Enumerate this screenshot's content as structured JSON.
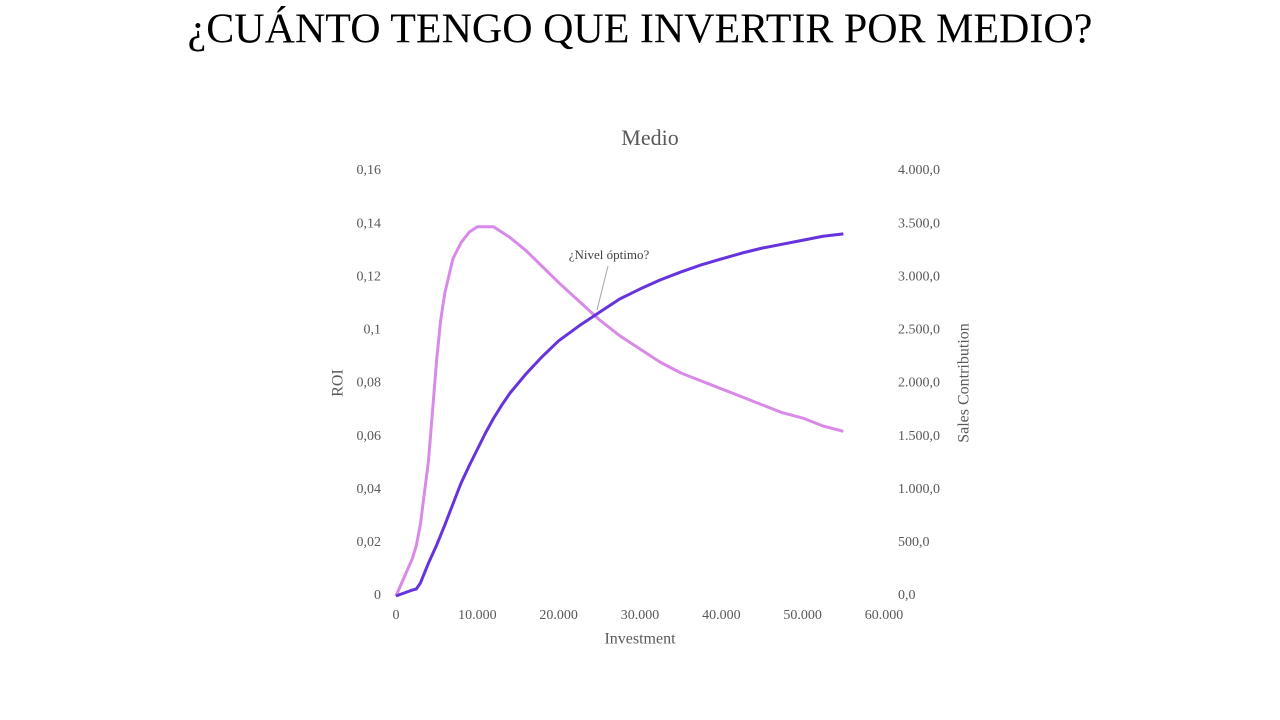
{
  "page_title": "¿CUÁNTO TENGO QUE INVERTIR POR MEDIO?",
  "chart_data": {
    "type": "line",
    "title": "Medio",
    "x_label": "Investment",
    "y_label": "ROI",
    "y2_label": "Sales Contribution",
    "annotation": "¿Nivel óptimo?",
    "x": [
      0,
      1000,
      2000,
      2500,
      3000,
      4000,
      5000,
      5500,
      6000,
      7000,
      8000,
      9000,
      10000,
      11000,
      12000,
      13000,
      14000,
      16000,
      18000,
      20000,
      22500,
      25000,
      27500,
      30000,
      32500,
      35000,
      37500,
      40000,
      42500,
      45000,
      47500,
      50000,
      52500,
      55000
    ],
    "series": [
      {
        "name": "ROI",
        "color": "#d98ae8",
        "values": [
          0,
          0.007,
          0.014,
          0.019,
          0.027,
          0.051,
          0.089,
          0.104,
          0.114,
          0.127,
          0.133,
          0.137,
          0.139,
          0.139,
          0.139,
          0.137,
          0.135,
          0.13,
          0.124,
          0.118,
          0.111,
          0.104,
          0.098,
          0.093,
          0.088,
          0.084,
          0.081,
          0.078,
          0.075,
          0.072,
          0.069,
          0.067,
          0.064,
          0.062
        ]
      },
      {
        "name": "Sales Contribution",
        "color": "#6633dd",
        "axis": "y2",
        "values": [
          0,
          28,
          56,
          66,
          122,
          311,
          480,
          574,
          668,
          866,
          1063,
          1226,
          1380,
          1534,
          1673,
          1796,
          1908,
          2092,
          2255,
          2402,
          2542,
          2669,
          2795,
          2889,
          2975,
          3049,
          3116,
          3172,
          3227,
          3274,
          3311,
          3348,
          3386,
          3408
        ]
      }
    ],
    "xlim": [
      0,
      60000
    ],
    "xticks": [
      0,
      {
        "value": 10000,
        "label": "10.000"
      },
      {
        "value": 20000,
        "label": "20.000"
      },
      {
        "value": 30000,
        "label": "30.000"
      },
      {
        "value": 40000,
        "label": "40.000"
      },
      {
        "value": 50000,
        "label": "50.000"
      },
      {
        "value": 60000,
        "label": "60.000"
      }
    ],
    "ylim": [
      0,
      0.16
    ],
    "yticks": [
      0,
      {
        "value": 0.02,
        "label": "0,02"
      },
      {
        "value": 0.04,
        "label": "0,04"
      },
      {
        "value": 0.06,
        "label": "0,06"
      },
      {
        "value": 0.08,
        "label": "0,08"
      },
      {
        "value": 0.1,
        "label": "0,1"
      },
      {
        "value": 0.12,
        "label": "0,12"
      },
      {
        "value": 0.14,
        "label": "0,14"
      },
      {
        "value": 0.16,
        "label": "0,16"
      }
    ],
    "y2lim": [
      0,
      4000
    ],
    "y2ticks": [
      {
        "value": 0,
        "label": "0,0"
      },
      {
        "value": 500,
        "label": "500,0"
      },
      {
        "value": 1000,
        "label": "1.000,0"
      },
      {
        "value": 1500,
        "label": "1.500,0"
      },
      {
        "value": 2000,
        "label": "2.000,0"
      },
      {
        "value": 2500,
        "label": "2.500,0"
      },
      {
        "value": 3000,
        "label": "3.000,0"
      },
      {
        "value": 3500,
        "label": "3.500,0"
      },
      {
        "value": 4000,
        "label": "4.000,0"
      }
    ],
    "grid": false
  }
}
